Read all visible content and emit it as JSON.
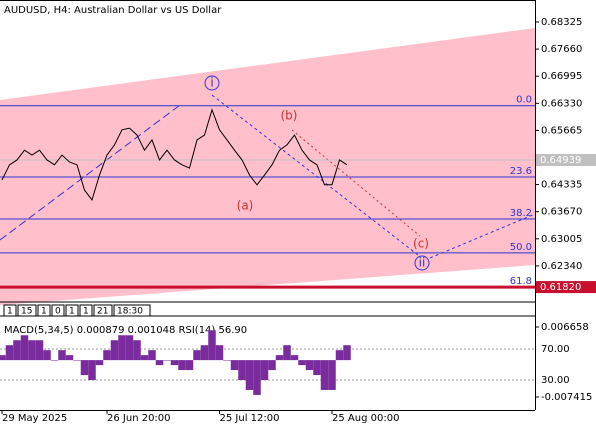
{
  "chart_data": {
    "type": "line",
    "title": "AUDUSD, H4:  Australian Dollar vs US Dollar",
    "color": "#000000",
    "categories": [
      "29 May 2025",
      null,
      null,
      null,
      null,
      null,
      null,
      null,
      null,
      null,
      null,
      null,
      null,
      null,
      "26 Jun 20:00",
      null,
      null,
      null,
      null,
      null,
      null,
      null,
      null,
      null,
      null,
      null,
      null,
      null,
      null,
      "25 Jul 12:00",
      null,
      null,
      null,
      null,
      null,
      null,
      null,
      null,
      null,
      null,
      null,
      null,
      null,
      null,
      "25 Aug 00:00",
      null,
      null,
      null,
      null,
      null,
      null,
      null,
      null,
      null,
      null,
      null,
      null,
      null,
      null,
      null,
      null,
      null,
      null,
      null,
      null,
      null,
      null,
      null,
      null,
      null,
      null,
      null
    ],
    "values": [
      0.6445,
      0.6482,
      0.6494,
      0.6518,
      0.6506,
      0.6518,
      0.6494,
      0.6482,
      0.6506,
      0.6489,
      0.6482,
      0.642,
      0.6396,
      0.6457,
      0.6506,
      0.6531,
      0.6568,
      0.6572,
      0.6555,
      0.6518,
      0.6543,
      0.6494,
      0.6518,
      0.6494,
      0.6482,
      0.6474,
      0.6543,
      0.6555,
      0.6617,
      0.6568,
      0.6543,
      0.6518,
      0.6494,
      0.6457,
      0.6433,
      0.6457,
      0.6482,
      0.6518,
      0.6531,
      0.6555,
      0.6518,
      0.6494,
      0.6482,
      0.6433,
      0.6433,
      0.6494,
      0.6482,
      null,
      null,
      null,
      null,
      null,
      null,
      null,
      null,
      null,
      null,
      null,
      null,
      null,
      null,
      null,
      null,
      null,
      null,
      null,
      null,
      null,
      null,
      null,
      null,
      null
    ],
    "ylim": [
      0.61503,
      0.68865
    ],
    "yticks": [
      0.68325,
      {
        "value": 0.6766,
        "label": "0.67660"
      },
      0.66995,
      {
        "value": 0.6633,
        "label": "0.66330"
      },
      0.65665,
      0.64335,
      {
        "value": 0.6367,
        "label": "0.63670"
      },
      0.63005,
      {
        "value": 0.6234,
        "label": "0.62340"
      }
    ],
    "last_price": 0.64939,
    "fib_levels": [
      {
        "label": "0.0",
        "value": 0.6627
      },
      {
        "label": "23.6",
        "value": 0.6452
      },
      {
        "label": "38.2",
        "value": 0.6349
      },
      {
        "label": "50.0",
        "value": 0.6266
      },
      {
        "label": "61.8",
        "value": 0.6182,
        "price_label": "0.61820"
      }
    ],
    "wave_labels": [
      "i",
      "(b)",
      "(a)",
      "(c)",
      "ii"
    ],
    "separator_labels": [
      "1",
      "15",
      "1",
      "0",
      "1",
      "1",
      "21",
      "18:30"
    ],
    "indicator": {
      "label": "MACD(5,34,5) 0.000879 0.001048 RSI(14) 56.90",
      "color": "#7a2c9e",
      "values": [
        0.001,
        0.003,
        0.004,
        0.005,
        0.004,
        0.004,
        0.002,
        0.0,
        0.002,
        0.001,
        0.0,
        -0.003,
        -0.004,
        -0.001,
        0.002,
        0.004,
        0.005,
        0.005,
        0.004,
        0.001,
        0.002,
        -0.001,
        0.0,
        -0.001,
        -0.002,
        -0.002,
        0.002,
        0.003,
        0.006,
        0.003,
        0.0,
        -0.002,
        -0.004,
        -0.006,
        -0.007,
        -0.004,
        -0.002,
        0.001,
        0.003,
        0.001,
        -0.001,
        -0.002,
        -0.003,
        -0.006,
        -0.006,
        0.002,
        0.003,
        null,
        null,
        null,
        null,
        null,
        null,
        null,
        null,
        null,
        null,
        null,
        null,
        null,
        null,
        null,
        null,
        null,
        null,
        null,
        null,
        null,
        null,
        null,
        null,
        null
      ],
      "ylim": [
        -0.01003,
        0.00847
      ],
      "yticks": [
        0.006658,
        -0.007415
      ],
      "y2lim": [
        -8.7,
        110
      ],
      "y2ticks": [
        {
          "value": 70,
          "label": "70.00"
        },
        {
          "value": 30,
          "label": "30.00"
        }
      ]
    }
  }
}
